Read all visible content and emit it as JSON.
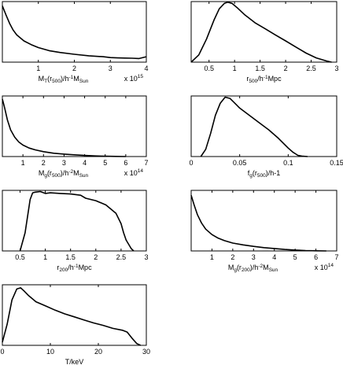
{
  "chart_data": [
    {
      "type": "line",
      "xlabel": {
        "main": "M",
        "sub": "T",
        "mid": "(r",
        "sub2": "500",
        "post": ")/h",
        "sup": "-1",
        "post2": "M",
        "sub3": "Sun"
      },
      "multiplier": {
        "base": "x 10",
        "exp": "15"
      },
      "xlim": [
        0,
        4
      ],
      "xticks": [
        1,
        2,
        3,
        4
      ],
      "xticklabels": [
        "1",
        "2",
        "3",
        "4"
      ],
      "x": [
        0.0,
        0.1,
        0.2,
        0.3,
        0.4,
        0.6,
        0.8,
        1.0,
        1.3,
        1.6,
        2.0,
        2.4,
        2.8,
        3.0,
        3.2,
        3.4,
        3.6,
        3.8,
        4.0
      ],
      "y": [
        0.93,
        0.78,
        0.64,
        0.53,
        0.45,
        0.35,
        0.29,
        0.24,
        0.19,
        0.16,
        0.13,
        0.105,
        0.09,
        0.075,
        0.07,
        0.068,
        0.065,
        0.06,
        0.09
      ]
    },
    {
      "type": "line",
      "xlabel": {
        "main": "r",
        "sub": "500",
        "post": "/h",
        "sup": "-1",
        "post2": "Mpc"
      },
      "xlim": [
        0.15,
        3.0
      ],
      "xticks": [
        0.5,
        1,
        1.5,
        2,
        2.5,
        3
      ],
      "xticklabels": [
        "0.5",
        "1",
        "1.5",
        "2",
        "2.5",
        "3"
      ],
      "x": [
        0.15,
        0.3,
        0.45,
        0.6,
        0.7,
        0.8,
        0.87,
        0.95,
        1.05,
        1.2,
        1.4,
        1.6,
        1.8,
        2.0,
        2.2,
        2.4,
        2.6,
        2.8,
        2.9
      ],
      "y": [
        0.0,
        0.12,
        0.38,
        0.7,
        0.88,
        0.97,
        0.99,
        0.97,
        0.9,
        0.78,
        0.65,
        0.55,
        0.45,
        0.35,
        0.25,
        0.15,
        0.07,
        0.02,
        0.0
      ]
    },
    {
      "type": "line",
      "xlabel": {
        "main": "M",
        "sub": "g",
        "mid": "(r",
        "sub2": "500",
        "post": ")/h",
        "sup": "-2",
        "post2": "M",
        "sub3": "Sun"
      },
      "multiplier": {
        "base": "x 10",
        "exp": "14"
      },
      "xlim": [
        0,
        7
      ],
      "xticks": [
        1,
        2,
        3,
        4,
        5,
        6,
        7
      ],
      "xticklabels": [
        "1",
        "2",
        "3",
        "4",
        "5",
        "6",
        "7"
      ],
      "x": [
        0.0,
        0.1,
        0.25,
        0.4,
        0.6,
        0.8,
        1.0,
        1.3,
        1.6,
        2.0,
        2.5,
        3.0,
        3.5,
        4.0,
        4.5,
        5.0,
        5.5,
        6.0
      ],
      "y": [
        0.95,
        0.82,
        0.6,
        0.44,
        0.32,
        0.24,
        0.19,
        0.14,
        0.11,
        0.08,
        0.055,
        0.04,
        0.028,
        0.018,
        0.01,
        0.005,
        0.002,
        0.0
      ]
    },
    {
      "type": "line",
      "xlabel": {
        "main": "f",
        "sub": "g",
        "mid": "(r",
        "sub2": "500",
        "post": ")/h",
        "sup": "",
        "post2": "-1"
      },
      "xlim": [
        0,
        0.15
      ],
      "xticks": [
        0,
        0.05,
        0.1,
        0.15
      ],
      "xticklabels": [
        "0",
        "0.05",
        "0.1",
        "0.15"
      ],
      "x": [
        0.01,
        0.015,
        0.02,
        0.025,
        0.03,
        0.035,
        0.04,
        0.045,
        0.05,
        0.06,
        0.07,
        0.08,
        0.09,
        0.1,
        0.105,
        0.11,
        0.115,
        0.12
      ],
      "y": [
        0.0,
        0.12,
        0.38,
        0.68,
        0.88,
        0.98,
        0.96,
        0.88,
        0.8,
        0.68,
        0.56,
        0.44,
        0.3,
        0.14,
        0.07,
        0.02,
        0.005,
        0.0
      ]
    },
    {
      "type": "line",
      "xlabel": {
        "main": "r",
        "sub": "200",
        "post": "/h",
        "sup": "-1",
        "post2": "Mpc"
      },
      "xlim": [
        0.15,
        3.0
      ],
      "xticks": [
        0.5,
        1,
        1.5,
        2,
        2.5,
        3
      ],
      "xticklabels": [
        "0.5",
        "1",
        "1.5",
        "2",
        "2.5",
        "3"
      ],
      "x": [
        0.5,
        0.6,
        0.7,
        0.75,
        0.8,
        0.9,
        1.0,
        1.1,
        1.3,
        1.5,
        1.7,
        1.8,
        2.0,
        2.2,
        2.4,
        2.5,
        2.55,
        2.6,
        2.7,
        2.75
      ],
      "y": [
        0.0,
        0.3,
        0.85,
        0.96,
        0.97,
        0.98,
        0.95,
        0.96,
        0.95,
        0.94,
        0.92,
        0.87,
        0.83,
        0.76,
        0.62,
        0.45,
        0.3,
        0.18,
        0.04,
        0.0
      ]
    },
    {
      "type": "line",
      "xlabel": {
        "main": "M",
        "sub": "g",
        "mid": "(r",
        "sub2": "200",
        "post": ")/h",
        "sup": "-2",
        "post2": "M",
        "sub3": "Sun"
      },
      "multiplier": {
        "base": "x 10",
        "exp": "14"
      },
      "xlim": [
        0,
        7
      ],
      "xticks": [
        1,
        2,
        3,
        4,
        5,
        6,
        7
      ],
      "xticklabels": [
        "1",
        "2",
        "3",
        "4",
        "5",
        "6",
        "7"
      ],
      "x": [
        0.0,
        0.15,
        0.3,
        0.5,
        0.7,
        1.0,
        1.3,
        1.6,
        2.0,
        2.5,
        3.0,
        3.5,
        4.0,
        4.5,
        5.0,
        5.5,
        6.0,
        6.5
      ],
      "y": [
        0.92,
        0.75,
        0.6,
        0.46,
        0.36,
        0.27,
        0.21,
        0.17,
        0.13,
        0.1,
        0.075,
        0.055,
        0.04,
        0.025,
        0.014,
        0.006,
        0.002,
        0.0
      ]
    },
    {
      "type": "line",
      "xlabel": {
        "main": "T/keV"
      },
      "xlim": [
        0,
        30
      ],
      "xticks": [
        0,
        10,
        20,
        30
      ],
      "xticklabels": [
        "0",
        "10",
        "20",
        "30"
      ],
      "x": [
        0.0,
        1.0,
        2.0,
        3.0,
        3.8,
        4.5,
        5.5,
        7.0,
        9.0,
        11.0,
        13.0,
        15.0,
        17.0,
        19.0,
        21.0,
        23.0,
        25.0,
        26.0,
        27.0,
        28.0,
        28.8
      ],
      "y": [
        0.05,
        0.35,
        0.75,
        0.93,
        0.95,
        0.9,
        0.82,
        0.72,
        0.65,
        0.58,
        0.52,
        0.47,
        0.42,
        0.37,
        0.33,
        0.28,
        0.25,
        0.22,
        0.12,
        0.03,
        0.0
      ]
    }
  ]
}
